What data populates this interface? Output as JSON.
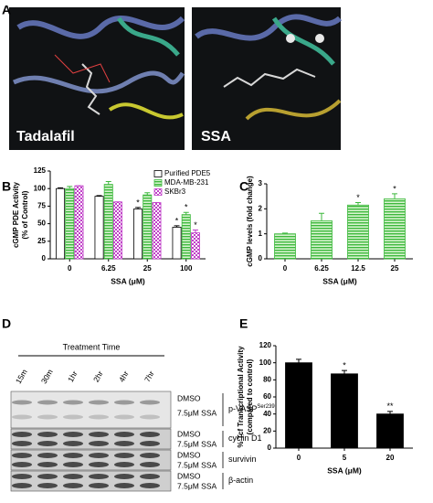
{
  "panel_labels": [
    "A",
    "B",
    "C",
    "D",
    "E"
  ],
  "panel_a": {
    "images": [
      {
        "label": "Tadalafil"
      },
      {
        "label": "SSA"
      }
    ]
  },
  "panel_d": {
    "header": "Treatment Time",
    "lanes": [
      "15m",
      "30m",
      "1hr",
      "2hr",
      "4hr",
      "7hr"
    ],
    "blots": [
      {
        "conditions": [
          "DMSO",
          "7.5μM SSA"
        ],
        "protein": "p-VASP",
        "superscript": "Ser239"
      },
      {
        "conditions": [
          "DMSO",
          "7.5μM SSA"
        ],
        "protein": "cyclin D1"
      },
      {
        "conditions": [
          "DMSO",
          "7.5μM SSA"
        ],
        "protein": "survivin"
      },
      {
        "conditions": [
          "DMSO",
          "7.5μM SSA"
        ],
        "protein": "β-actin"
      }
    ]
  },
  "chart_data": [
    {
      "type": "bar",
      "ylabel": [
        "cGMP PDE Activity",
        "(% of Control)"
      ],
      "xlabel": "SSA (μM)",
      "categories": [
        "0",
        "6.25",
        "25",
        "100"
      ],
      "ylim": [
        0,
        125
      ],
      "yticks": [
        0,
        25,
        50,
        75,
        100,
        125
      ],
      "legend": "top-right",
      "series": [
        {
          "name": "Purified PDE5",
          "color": "#000000",
          "pattern": "none",
          "values": [
            100,
            89,
            71,
            45
          ],
          "errors": [
            1,
            1,
            2,
            2
          ],
          "significance": [
            null,
            null,
            "*",
            "*"
          ]
        },
        {
          "name": "MDA-MB-231",
          "color": "#3cb83c",
          "pattern": "hatch",
          "values": [
            100,
            106,
            91,
            63
          ],
          "errors": [
            3,
            4,
            3,
            3
          ],
          "significance": [
            null,
            null,
            null,
            "*"
          ]
        },
        {
          "name": "SKBr3",
          "color": "#c040c8",
          "pattern": "check",
          "values": [
            104,
            81,
            80,
            37
          ],
          "errors": [
            0,
            0,
            0,
            4
          ],
          "significance": [
            null,
            null,
            null,
            "*"
          ]
        }
      ]
    },
    {
      "type": "bar",
      "ylabel": "cGMP levels (fold change)",
      "xlabel": "SSA (μM)",
      "categories": [
        "0",
        "6.25",
        "12.5",
        "25"
      ],
      "ylim": [
        0,
        3
      ],
      "yticks": [
        0,
        1,
        2,
        3
      ],
      "color": "#3cb83c",
      "pattern": "hatch",
      "values": [
        1.0,
        1.52,
        2.15,
        2.4
      ],
      "errors": [
        0.03,
        0.3,
        0.1,
        0.2
      ],
      "significance": [
        null,
        null,
        "*",
        "*"
      ]
    },
    {
      "type": "bar",
      "ylabel": [
        "% Tcf Transcriptional Activity",
        "(compared to control)"
      ],
      "xlabel": "SSA (μM)",
      "categories": [
        "0",
        "5",
        "20"
      ],
      "ylim": [
        0,
        120
      ],
      "yticks": [
        0,
        20,
        40,
        60,
        80,
        100,
        120
      ],
      "color": "#000000",
      "pattern": "none",
      "fill": "#000000",
      "values": [
        100,
        87,
        40
      ],
      "errors": [
        4,
        4,
        3
      ],
      "significance": [
        null,
        "*",
        "**"
      ]
    }
  ]
}
